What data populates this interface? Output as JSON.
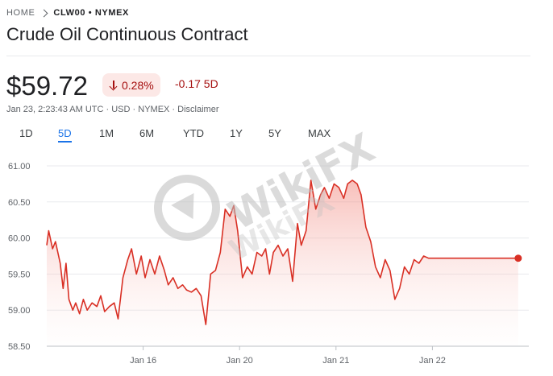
{
  "breadcrumb": {
    "home": "HOME",
    "current": "CLW00 • NYMEX"
  },
  "title": "Crude Oil Continuous Contract",
  "quote": {
    "price": "$59.72",
    "change_pct": "0.28%",
    "change_abs": "-0.17 5D",
    "direction_icon": "arrow-down-icon",
    "timestamp": "Jan 23, 2:23:43 AM UTC",
    "currency": "USD",
    "exchange": "NYMEX",
    "disclaimer": "Disclaimer",
    "separator": " · "
  },
  "ranges": [
    {
      "label": "1D",
      "active": false
    },
    {
      "label": "5D",
      "active": true
    },
    {
      "label": "1M",
      "active": false
    },
    {
      "label": "6M",
      "active": false
    },
    {
      "label": "YTD",
      "active": false
    },
    {
      "label": "1Y",
      "active": false
    },
    {
      "label": "5Y",
      "active": false
    },
    {
      "label": "MAX",
      "active": false
    }
  ],
  "watermark": {
    "brand": "WikiFX"
  },
  "colors": {
    "line": "#d93025",
    "fill": "#fad2cf",
    "negative": "#a50e0e",
    "active_tab": "#1a73e8"
  },
  "chart_data": {
    "type": "area",
    "ylim": [
      58.5,
      61.0
    ],
    "y_ticks": [
      "61.00",
      "60.50",
      "60.00",
      "59.50",
      "59.00",
      "58.50"
    ],
    "y_tick_values": [
      61.0,
      60.5,
      60.0,
      59.5,
      59.0,
      58.5
    ],
    "x_ticks": [
      {
        "label": "Jan 16",
        "x": 1.0
      },
      {
        "label": "Jan 20",
        "x": 2.0
      },
      {
        "label": "Jan 21",
        "x": 3.0
      },
      {
        "label": "Jan 22",
        "x": 4.0
      }
    ],
    "xlim": [
      0.0,
      5.0
    ],
    "series": [
      {
        "x": [
          0.0,
          0.02,
          0.06,
          0.09,
          0.14,
          0.17,
          0.2,
          0.23,
          0.27,
          0.3,
          0.34,
          0.38,
          0.42,
          0.47,
          0.52,
          0.56,
          0.6,
          0.65,
          0.7,
          0.74,
          0.79,
          0.84,
          0.88,
          0.93,
          0.98,
          1.02,
          1.07,
          1.12,
          1.17,
          1.22,
          1.26,
          1.31,
          1.36,
          1.41,
          1.45,
          1.5,
          1.55,
          1.6,
          1.65,
          1.7,
          1.75,
          1.8,
          1.85,
          1.9,
          1.94,
          1.98,
          2.03,
          2.08,
          2.13,
          2.18,
          2.23,
          2.27,
          2.31,
          2.35,
          2.4,
          2.45,
          2.5,
          2.55,
          2.6,
          2.64,
          2.69,
          2.74,
          2.79,
          2.84,
          2.88,
          2.93,
          2.98,
          3.03,
          3.08,
          3.12,
          3.17,
          3.22,
          3.26,
          3.31,
          3.36,
          3.41,
          3.46,
          3.51,
          3.56,
          3.61,
          3.66,
          3.71,
          3.76,
          3.81,
          3.86,
          3.91,
          3.96,
          4.01,
          4.06,
          4.11,
          4.15,
          4.2,
          4.25,
          4.3,
          4.35,
          4.4,
          4.45,
          4.5,
          4.55,
          4.6,
          4.65,
          4.7,
          4.75,
          4.8,
          4.85,
          4.89
        ],
        "y": [
          59.9,
          60.1,
          59.85,
          59.95,
          59.65,
          59.3,
          59.65,
          59.15,
          59.0,
          59.1,
          58.95,
          59.15,
          59.0,
          59.1,
          59.05,
          59.2,
          58.98,
          59.05,
          59.1,
          58.88,
          59.45,
          59.7,
          59.85,
          59.5,
          59.75,
          59.45,
          59.7,
          59.5,
          59.75,
          59.55,
          59.35,
          59.45,
          59.3,
          59.35,
          59.28,
          59.25,
          59.3,
          59.2,
          58.8,
          59.5,
          59.55,
          59.8,
          60.4,
          60.3,
          60.45,
          60.1,
          59.45,
          59.6,
          59.5,
          59.8,
          59.75,
          59.85,
          59.5,
          59.8,
          59.9,
          59.75,
          59.85,
          59.4,
          60.2,
          59.9,
          60.1,
          60.8,
          60.4,
          60.6,
          60.7,
          60.55,
          60.75,
          60.7,
          60.55,
          60.75,
          60.8,
          60.75,
          60.6,
          60.15,
          59.95,
          59.6,
          59.45,
          59.7,
          59.55,
          59.15,
          59.3,
          59.6,
          59.5,
          59.7,
          59.65,
          59.75,
          59.72,
          59.72,
          59.72,
          59.72,
          59.72,
          59.72,
          59.72,
          59.72,
          59.72,
          59.72,
          59.72,
          59.72,
          59.72,
          59.72,
          59.72,
          59.72,
          59.72,
          59.72,
          59.72,
          59.72
        ]
      }
    ]
  }
}
